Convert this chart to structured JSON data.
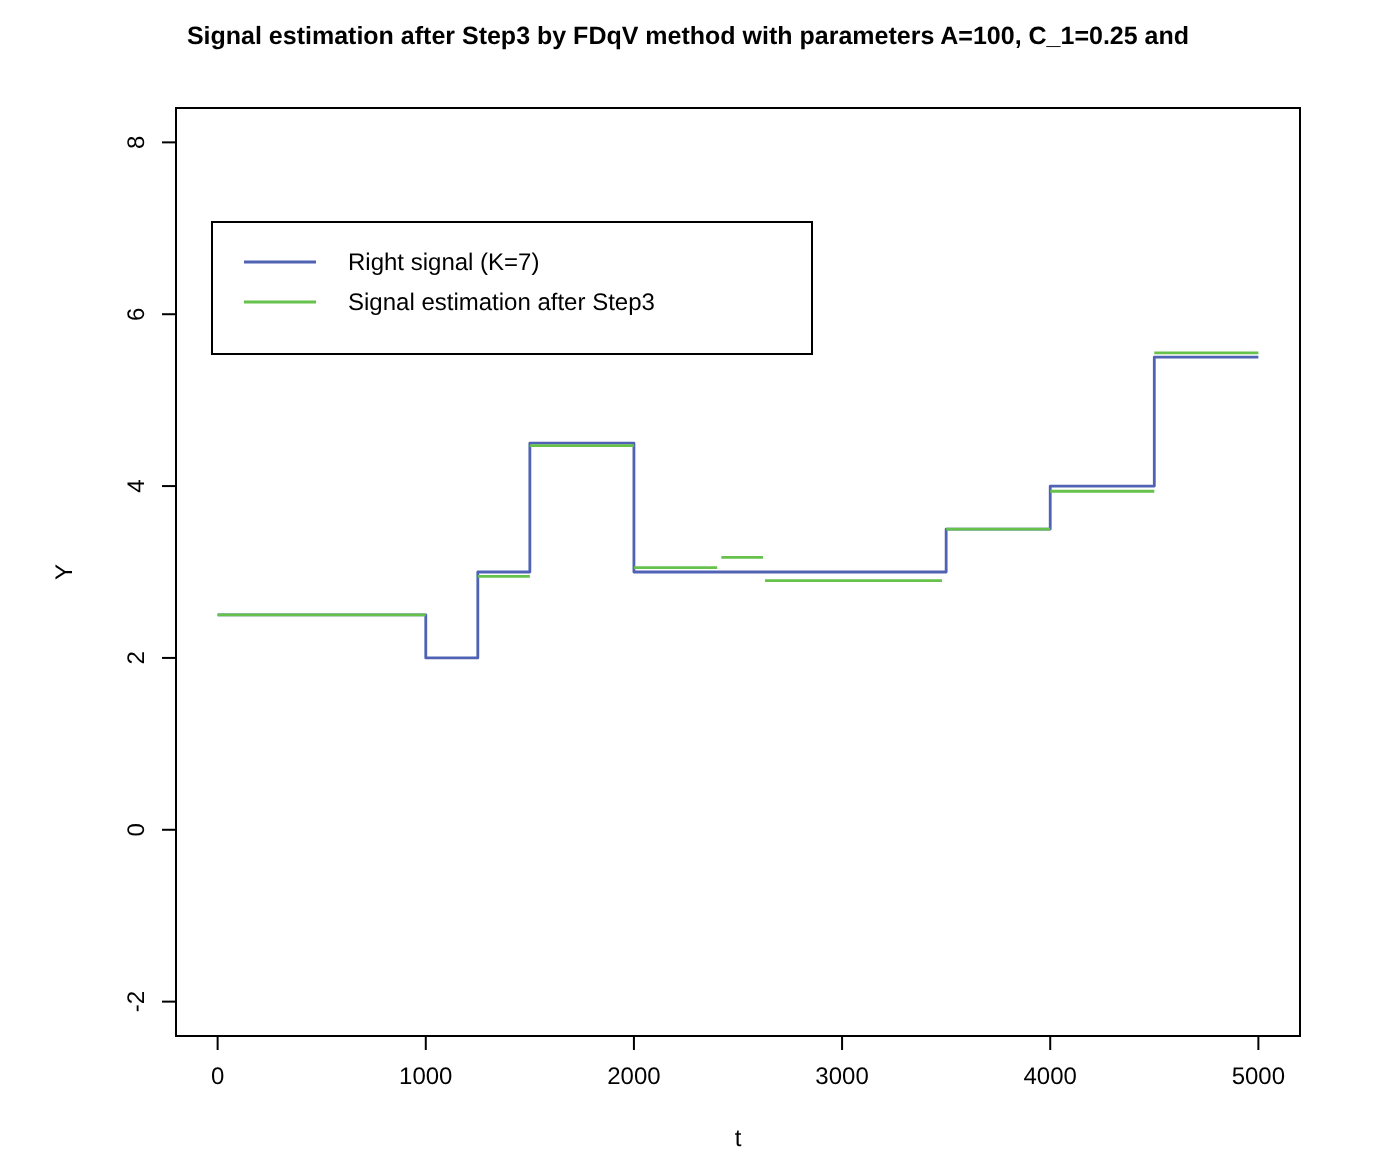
{
  "chart_data": {
    "type": "line",
    "title": "Signal estimation after Step3 by FDqV method with parameters A=100, C_1=0.25 and",
    "xlabel": "t",
    "ylabel": "Y",
    "xlim": [
      -200,
      5200
    ],
    "ylim": [
      -2.4,
      8.4
    ],
    "xticks": [
      0,
      1000,
      2000,
      3000,
      4000,
      5000
    ],
    "yticks": [
      -2,
      0,
      2,
      4,
      6,
      8
    ],
    "grid": false,
    "legend": "top left",
    "series": [
      {
        "name": "Right signal (K=7)",
        "type": "step",
        "color": "#4f62b4",
        "x": [
          0,
          1000,
          1250,
          1500,
          2000,
          3500,
          4000,
          4500,
          5000
        ],
        "values": [
          2.5,
          2,
          3,
          4.5,
          3,
          3.5,
          4,
          5.5,
          5.5
        ]
      },
      {
        "name": "Signal estimation after Step3",
        "color": "#66c24a",
        "x": [
          0,
          1000
        ],
        "values": [
          2.5,
          2.5
        ]
      },
      {
        "color": "#66c24a",
        "x": [
          1250,
          1500
        ],
        "values": [
          2.95,
          2.95
        ]
      },
      {
        "color": "#66c24a",
        "x": [
          1500,
          2000
        ],
        "values": [
          4.47,
          4.47
        ]
      },
      {
        "color": "#66c24a",
        "x": [
          2000,
          2400
        ],
        "values": [
          3.05,
          3.05
        ]
      },
      {
        "color": "#66c24a",
        "x": [
          2420,
          2620
        ],
        "values": [
          3.17,
          3.17
        ]
      },
      {
        "color": "#66c24a",
        "x": [
          2630,
          3480
        ],
        "values": [
          2.9,
          2.9
        ]
      },
      {
        "color": "#66c24a",
        "x": [
          3500,
          4000
        ],
        "values": [
          3.5,
          3.5
        ]
      },
      {
        "color": "#66c24a",
        "x": [
          4000,
          4500
        ],
        "values": [
          3.94,
          3.94
        ]
      },
      {
        "color": "#66c24a",
        "x": [
          4500,
          5000
        ],
        "values": [
          5.55,
          5.55
        ]
      }
    ]
  }
}
